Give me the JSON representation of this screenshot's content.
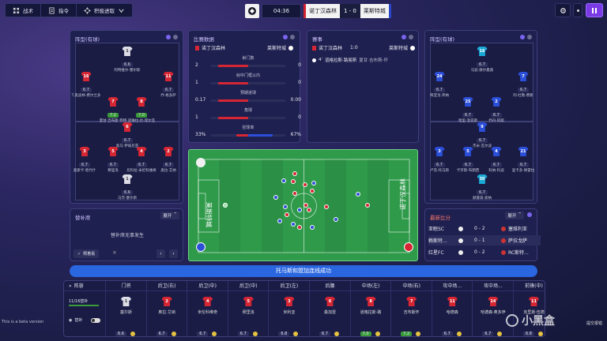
{
  "topbar": {
    "tactics": "战术",
    "instructions": "指令",
    "aggressive": "积极进取"
  },
  "match": {
    "time": "04:36",
    "home": "诺丁汉森林",
    "score": "1 - 0",
    "away": "莱斯特城"
  },
  "home_lineup_panel": {
    "title": "阵型(有球)",
    "players": [
      {
        "num": "1",
        "name": "阿特维尔-塞尔斯",
        "rating": "6.6"
      },
      {
        "num": "16",
        "name": "T.奥迪林-费尔兰多",
        "rating": "6.7"
      },
      {
        "num": "11",
        "name": "乔·格多萨",
        "rating": "6.7"
      },
      {
        "num": "7",
        "name": "夏甘·吉布斯-怀特",
        "rating": "7.2",
        "green": true
      },
      {
        "num": "8",
        "name": "诺维拉·达-席尔瓦",
        "rating": "7.0",
        "green": true
      },
      {
        "num": "6",
        "name": "奥马·伊坡尼亚",
        "rating": "6.7"
      },
      {
        "num": "3",
        "name": "奥斯卡·哈代什",
        "rating": "6.7"
      },
      {
        "num": "5",
        "name": "穆里洛",
        "rating": "6.7"
      },
      {
        "num": "4",
        "name": "尼科拉·米伦科维奇",
        "rating": "6.7"
      },
      {
        "num": "2",
        "name": "奥拉·艾纳",
        "rating": "6.7"
      },
      {
        "num": "1",
        "name": "马茨·塞尔斯",
        "rating": "6.6"
      }
    ]
  },
  "stats": {
    "title": "比赛数据",
    "home": "诺丁汉森林",
    "away": "莱斯特城",
    "rows": [
      {
        "label": "射门数",
        "home": "2",
        "away": "0",
        "home_frac": 0.8,
        "away_frac": 0.0
      },
      {
        "label": "射中门框以内",
        "home": "1",
        "away": "0",
        "home_frac": 0.8,
        "away_frac": 0.0
      },
      {
        "label": "预期进球",
        "home": "0.17",
        "away": "0.00",
        "home_frac": 0.8,
        "away_frac": 0.0
      },
      {
        "label": "角球",
        "home": "1",
        "away": "0",
        "home_frac": 0.8,
        "away_frac": 0.0
      },
      {
        "label": "控球率",
        "home": "33%",
        "away": "67%",
        "home_frac": 0.33,
        "away_frac": 0.67
      }
    ]
  },
  "events": {
    "title": "赛事",
    "home": "诺丁汉森林",
    "score": "1:0",
    "away": "莱斯特城",
    "minute": "4'",
    "scorer": "道格拉斯·路易斯",
    "assist": "夏甘·吉布斯-怀"
  },
  "away_lineup_panel": {
    "title": "阵型(有球)",
    "players": [
      {
        "num": "16",
        "name": "马兹·赫尔曼森",
        "rating": "6.7"
      },
      {
        "num": "24",
        "name": "蒂亚戈·邦纳",
        "rating": "6.7"
      },
      {
        "num": "7",
        "name": "阿·杜勒·费斯",
        "rating": "6.7"
      },
      {
        "num": "25",
        "name": "哈里·温克斯",
        "rating": "6.7"
      },
      {
        "num": "2",
        "name": "乔丹·阿耶",
        "rating": "6.7"
      },
      {
        "num": "9",
        "name": "杰米·瓦尔迪",
        "rating": "6.7"
      },
      {
        "num": "3",
        "name": "卢克·托马斯",
        "rating": "6.7"
      },
      {
        "num": "5",
        "name": "卡罗斯·布朗西",
        "rating": "6.7"
      },
      {
        "num": "4",
        "name": "科纳·科迪",
        "rating": "6.7"
      },
      {
        "num": "21",
        "name": "里卡多·佩雷拉",
        "rating": "6.7"
      },
      {
        "num": "30",
        "name": "赫曼森·索纳",
        "rating": "6.7"
      }
    ]
  },
  "field": {
    "home_label": "诺丁汉森林",
    "away_label": "莱斯特城"
  },
  "subs": {
    "title": "替补席",
    "expand": "展开",
    "empty": "替补席无事发生",
    "tag_label": "照着看"
  },
  "recent": {
    "title": "最新比分",
    "expand": "展开",
    "rows": [
      {
        "home": "亚眠SC",
        "score": "0 - 2",
        "away": "塞维利亚"
      },
      {
        "home": "赖斯特...",
        "score": "0 - 1",
        "away": "萨拉戈萨"
      },
      {
        "home": "红星FC",
        "score": "0 - 2",
        "away": "RC斯特..."
      }
    ]
  },
  "banner": "托马斯和盟加连线成功",
  "lineup": {
    "title": "阵容",
    "formation_label": "11/16替补",
    "toggle_label": "替补",
    "columns": [
      {
        "pos": "门将",
        "name": "塞尔斯",
        "rating": "6.6",
        "num": "1"
      },
      {
        "pos": "后卫(右)",
        "name": "奥拉·艾纳",
        "rating": "6.7",
        "num": "2"
      },
      {
        "pos": "后卫(中)",
        "name": "米伦科维奇",
        "rating": "6.7",
        "num": "4"
      },
      {
        "pos": "后卫(中)",
        "name": "穆里洛",
        "rating": "6.7",
        "num": "5"
      },
      {
        "pos": "后卫(左)",
        "name": "米利亚",
        "rating": "6.8",
        "num": "3"
      },
      {
        "pos": "后腰",
        "name": "桑加雷",
        "rating": "6.7",
        "num": "6"
      },
      {
        "pos": "中场(左)",
        "name": "道格拉斯·路",
        "rating": "7.0",
        "num": "8",
        "green": true
      },
      {
        "pos": "中场(右)",
        "name": "吉布斯怀",
        "rating": "7.2",
        "num": "7",
        "green": true
      },
      {
        "pos": "攻中场...",
        "name": "哈德森",
        "rating": "6.7",
        "num": "11"
      },
      {
        "pos": "攻中场...",
        "name": "哈德森·奥多伊",
        "rating": "6.7",
        "num": "14"
      },
      {
        "pos": "前锋(中)",
        "name": "克里斯·伍德",
        "rating": "6.8",
        "num": "11"
      }
    ]
  },
  "watermark": {
    "beta": "This is a beta version",
    "site": "小黑盒",
    "report": "提交报错"
  },
  "colors": {
    "home": "#d62633",
    "away": "#2b4fd9",
    "accent": "#7a64ee",
    "pitch": "#2e9a4a"
  }
}
